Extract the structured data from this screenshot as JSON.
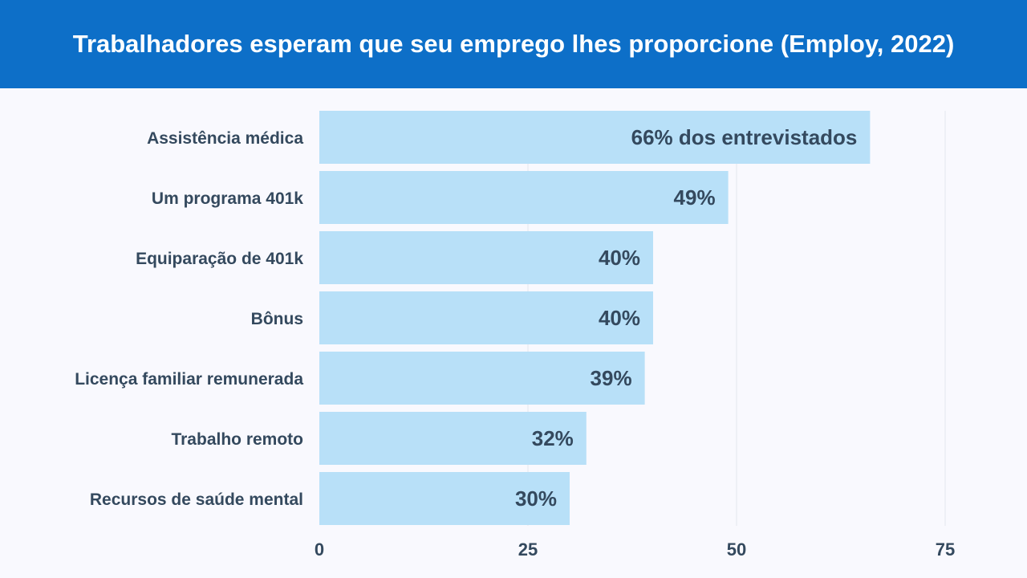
{
  "chart_data": {
    "type": "bar",
    "orientation": "horizontal",
    "title": "Trabalhadores esperam que seu emprego lhes proporcione (Employ, 2022)",
    "categories": [
      "Assistência médica",
      "Um programa 401k",
      "Equiparação de 401k",
      "Bônus",
      "Licença familiar remunerada",
      "Trabalho remoto",
      "Recursos de saúde mental"
    ],
    "values": [
      66,
      49,
      40,
      40,
      39,
      32,
      30
    ],
    "data_labels": [
      "66% dos entrevistados",
      "49%",
      "40%",
      "40%",
      "39%",
      "32%",
      "30%"
    ],
    "xlim": [
      0,
      75
    ],
    "x_ticks": [
      "0",
      "25",
      "50",
      "75"
    ],
    "tick_values": [
      0,
      25,
      50,
      75
    ],
    "grid": true,
    "xlabel": "",
    "ylabel": "",
    "colors": {
      "header": "#0d6fc8",
      "bar": "#b8e0f8",
      "text": "#34495e",
      "background": "#f9f9fe",
      "grid": "#e3e6ee"
    }
  }
}
